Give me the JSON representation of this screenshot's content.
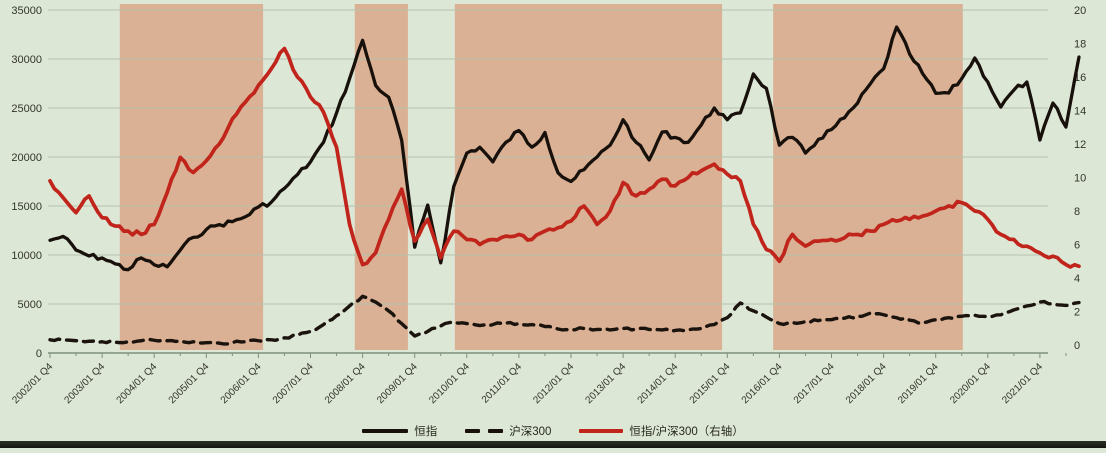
{
  "chart_data": {
    "type": "line",
    "title": "",
    "x_tick_labels": [
      "2002/01 Q4",
      "2003/01 Q4",
      "2004/01 Q4",
      "2005/01 Q4",
      "2006/01 Q4",
      "2007/01 Q4",
      "2008/01 Q4",
      "2009/01 Q4",
      "2010/01 Q4",
      "2011/01 Q4",
      "2012/01 Q4",
      "2013/01 Q4",
      "2014/01 Q4",
      "2015/01 Q4",
      "2016/01 Q4",
      "2017/01 Q4",
      "2018/01 Q4",
      "2019/01 Q4",
      "2020/01 Q4",
      "2021/01 Q4"
    ],
    "x_start_year": 2002,
    "points_per_year": 4,
    "left_axis": {
      "min": 0,
      "max": 35000,
      "ticks": [
        "35000",
        "30000",
        "25000",
        "20000",
        "15000",
        "10000",
        "5000",
        "0"
      ]
    },
    "right_axis": {
      "min": 0,
      "max": 20,
      "ticks": [
        "20",
        "18",
        "16",
        "14",
        "12",
        "10",
        "8",
        "6",
        "4",
        "2",
        "0"
      ]
    },
    "grid": true,
    "legend_position": "bottom",
    "highlight_bands": [
      {
        "from": 2003.34,
        "to": 2006.09
      },
      {
        "from": 2007.85,
        "to": 2008.87
      },
      {
        "from": 2009.77,
        "to": 2014.9
      },
      {
        "from": 2015.88,
        "to": 2019.52
      }
    ],
    "series": [
      {
        "name": "恒指",
        "axis": "left",
        "style": "solid",
        "color": "#17100b",
        "values": [
          11500,
          11900,
          10500,
          9900,
          9700,
          9100,
          8500,
          9700,
          9000,
          8800,
          10500,
          11800,
          12600,
          13100,
          13400,
          13900,
          14900,
          15400,
          16800,
          18200,
          19500,
          21500,
          24500,
          28000,
          31900,
          27300,
          26100,
          21700,
          10800,
          15100,
          9200,
          17000,
          20400,
          21000,
          19500,
          21500,
          22700,
          21000,
          22500,
          18400,
          17500,
          18700,
          20000,
          21200,
          23800,
          21500,
          19700,
          22550,
          22000,
          21500,
          23270,
          25000,
          23800,
          24500,
          28470,
          27000,
          21200,
          22000,
          20400,
          21800,
          22800,
          24000,
          25500,
          27500,
          29000,
          33260,
          30500,
          28500,
          26500,
          26530,
          28000,
          30100,
          27650,
          25100,
          26830,
          27650,
          21730,
          25500,
          23060,
          30200
        ]
      },
      {
        "name": "沪深300",
        "axis": "left",
        "style": "dashed",
        "color": "#1b130d",
        "values": [
          1350,
          1300,
          1250,
          1200,
          1150,
          1100,
          1150,
          1250,
          1300,
          1250,
          1200,
          1150,
          1050,
          1000,
          1050,
          1150,
          1250,
          1350,
          1550,
          1800,
          2200,
          2900,
          3800,
          4800,
          5780,
          5200,
          4300,
          3000,
          1730,
          2200,
          2760,
          3160,
          3000,
          2800,
          2900,
          3050,
          3000,
          2900,
          2700,
          2450,
          2350,
          2500,
          2400,
          2350,
          2500,
          2450,
          2400,
          2350,
          2300,
          2350,
          2500,
          2900,
          3600,
          5100,
          4300,
          3670,
          3000,
          3100,
          3200,
          3300,
          3400,
          3550,
          3750,
          4080,
          3900,
          3600,
          3350,
          3060,
          3400,
          3600,
          3750,
          3850,
          3700,
          3900,
          4400,
          4800,
          5200,
          5000,
          4850,
          5150
        ]
      },
      {
        "name": "恒指/沪深300（右轴）",
        "axis": "right",
        "style": "solid",
        "color": "#c0241a",
        "values": [
          9.8,
          8.8,
          7.9,
          8.9,
          7.6,
          7.1,
          6.8,
          6.6,
          7.2,
          9.1,
          11.2,
          10.3,
          11.0,
          12.0,
          13.5,
          14.5,
          15.5,
          16.5,
          17.7,
          16.0,
          14.8,
          13.9,
          11.8,
          7.2,
          4.8,
          5.5,
          7.5,
          9.3,
          6.2,
          7.5,
          5.2,
          6.8,
          6.3,
          6.0,
          6.3,
          6.5,
          6.6,
          6.3,
          6.8,
          7.0,
          7.4,
          8.3,
          7.2,
          8.0,
          9.7,
          8.9,
          9.3,
          9.9,
          9.5,
          10.0,
          10.4,
          10.8,
          10.2,
          9.8,
          7.2,
          5.7,
          5.0,
          6.6,
          5.9,
          6.2,
          6.3,
          6.4,
          6.6,
          6.8,
          7.2,
          7.4,
          7.5,
          7.7,
          8.0,
          8.3,
          8.5,
          8.0,
          7.5,
          6.6,
          6.3,
          5.9,
          5.5,
          5.3,
          4.8,
          4.7
        ]
      }
    ],
    "colors": {
      "background": "#dde7d6",
      "highlight_band": "#d9ad8e",
      "gridline": "#b7c2ae",
      "axis_line": "#7e9078",
      "tick_text": "#33352c"
    }
  }
}
